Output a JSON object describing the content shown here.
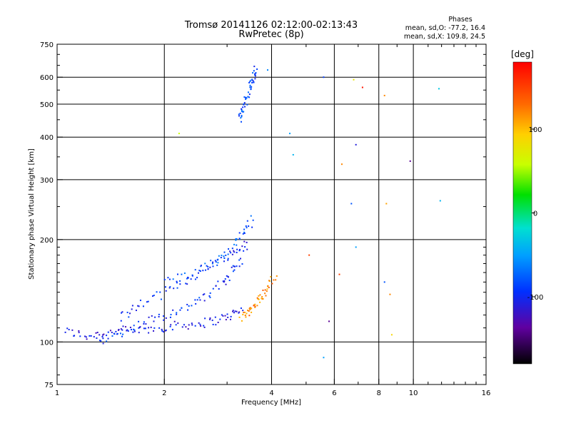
{
  "chart_data": {
    "type": "scatter",
    "title": "Tromsø 20141126 02:12:00-02:13:43",
    "subtitle": "RwPretec (8p)",
    "xlabel": "Frequency [MHz]",
    "ylabel": "Stationary phase Virtual Height [km]",
    "x_scale": "log",
    "y_scale": "log",
    "xlim": [
      1,
      16
    ],
    "ylim": [
      75,
      750
    ],
    "x_ticks": [
      1,
      2,
      4,
      6,
      8,
      10,
      16
    ],
    "y_ticks": [
      75,
      100,
      200,
      300,
      400,
      500,
      600,
      750
    ],
    "x_gridlines": [
      2,
      4,
      6,
      8,
      10
    ],
    "y_gridlines": [
      100,
      200,
      300,
      400,
      500,
      600
    ],
    "grid": true,
    "stats": {
      "heading": "Phases",
      "line1": "mean, sd,O: -77.2, 16.4",
      "line2": "mean, sd,X: 109.8, 24.5"
    },
    "colorbar": {
      "label": "[deg]",
      "range": [
        -180,
        180
      ],
      "ticks": [
        100,
        0,
        -100
      ]
    },
    "traces": [
      {
        "x": [
          1.05,
          1.2,
          1.35,
          1.5,
          1.7,
          1.95,
          2.2,
          2.5,
          2.8,
          3.1,
          3.3
        ],
        "y": [
          108,
          104,
          106,
          108,
          108,
          110,
          112,
          113,
          116,
          120,
          125
        ],
        "phase": -110
      },
      {
        "x": [
          1.3,
          1.5,
          1.75,
          2.0,
          2.3,
          2.6,
          2.9,
          3.1,
          3.3
        ],
        "y": [
          100,
          106,
          114,
          120,
          126,
          135,
          148,
          162,
          175
        ],
        "phase": -95
      },
      {
        "x": [
          1.5,
          1.7,
          2.0,
          2.3,
          2.6,
          2.9,
          3.2,
          3.45
        ],
        "y": [
          118,
          128,
          140,
          152,
          165,
          175,
          185,
          195
        ],
        "phase": -100
      },
      {
        "x": [
          2.0,
          2.4,
          2.8,
          3.1,
          3.35,
          3.55
        ],
        "y": [
          150,
          160,
          172,
          190,
          210,
          230
        ],
        "phase": -80
      },
      {
        "x": [
          3.25,
          3.3,
          3.4,
          3.5,
          3.55,
          3.6
        ],
        "y": [
          450,
          480,
          520,
          560,
          600,
          640
        ],
        "phase": -85
      },
      {
        "x": [
          3.3,
          3.45,
          3.6,
          3.75,
          3.9,
          4.1
        ],
        "y": [
          118,
          122,
          128,
          135,
          145,
          160
        ],
        "phase": 120
      }
    ],
    "points": [
      {
        "x": 3.9,
        "y": 630,
        "phase": -60
      },
      {
        "x": 5.6,
        "y": 600,
        "phase": -90
      },
      {
        "x": 6.8,
        "y": 590,
        "phase": 80
      },
      {
        "x": 7.2,
        "y": 560,
        "phase": 170
      },
      {
        "x": 8.3,
        "y": 530,
        "phase": 120
      },
      {
        "x": 11.8,
        "y": 555,
        "phase": -30
      },
      {
        "x": 4.5,
        "y": 410,
        "phase": -50
      },
      {
        "x": 6.9,
        "y": 380,
        "phase": -110
      },
      {
        "x": 4.6,
        "y": 355,
        "phase": -40
      },
      {
        "x": 6.3,
        "y": 333,
        "phase": 120
      },
      {
        "x": 9.8,
        "y": 340,
        "phase": -140
      },
      {
        "x": 6.7,
        "y": 255,
        "phase": -80
      },
      {
        "x": 8.4,
        "y": 255,
        "phase": 110
      },
      {
        "x": 11.9,
        "y": 260,
        "phase": -40
      },
      {
        "x": 6.9,
        "y": 190,
        "phase": -50
      },
      {
        "x": 5.1,
        "y": 180,
        "phase": 150
      },
      {
        "x": 6.2,
        "y": 158,
        "phase": 150
      },
      {
        "x": 8.3,
        "y": 150,
        "phase": -80
      },
      {
        "x": 8.6,
        "y": 138,
        "phase": 120
      },
      {
        "x": 5.8,
        "y": 115,
        "phase": -140
      },
      {
        "x": 8.7,
        "y": 105,
        "phase": 90
      },
      {
        "x": 5.6,
        "y": 90,
        "phase": -50
      },
      {
        "x": 2.2,
        "y": 410,
        "phase": 60
      }
    ]
  }
}
